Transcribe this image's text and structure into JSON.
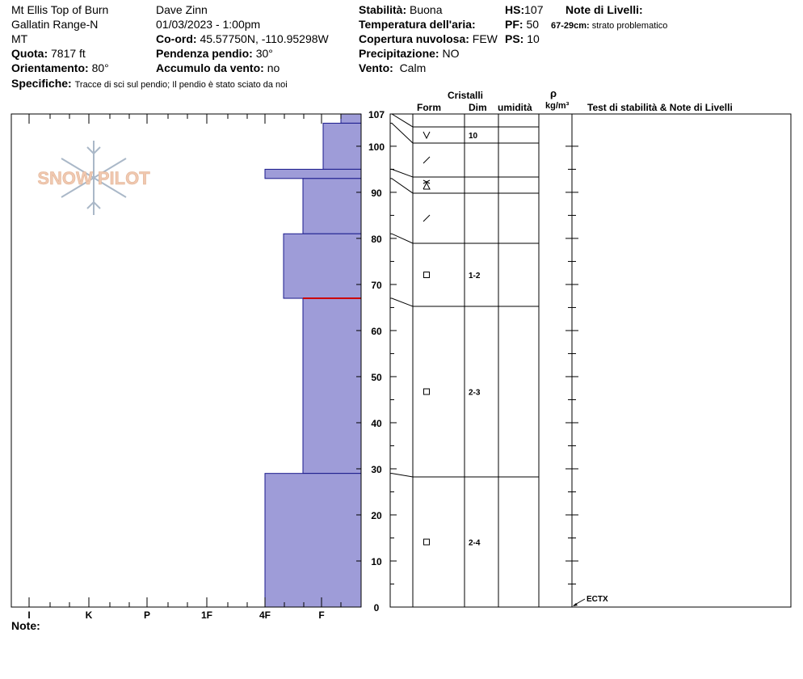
{
  "header": {
    "location": "Mt Ellis Top of Burn",
    "range": "Gallatin Range-N",
    "state": "MT",
    "observer": "Dave Zinn",
    "datetime": "01/03/2023 - 1:00pm",
    "elevation": {
      "label": "Quota:",
      "value": "7817 ft"
    },
    "aspect": {
      "label": "Orientamento:",
      "value": "80°"
    },
    "coords": {
      "label": "Co-ord:",
      "value": "45.57750N, -110.95298W"
    },
    "slope": {
      "label": "Pendenza pendio:",
      "value": "30°"
    },
    "wind_loading": {
      "label": "Accumulo da vento:",
      "value": "no"
    },
    "specifics": {
      "label": "Specifiche:",
      "value": "Tracce di sci sul pendio;  Il pendio è stato sciato da noi"
    },
    "stability": {
      "label": "Stabilità:",
      "value": "Buona"
    },
    "air_temp": {
      "label": "Temperatura dell'aria:",
      "value": ""
    },
    "sky": {
      "label": "Copertura nuvolosa:",
      "value": "FEW"
    },
    "precip": {
      "label": "Precipitazione:",
      "value": "NO"
    },
    "wind": {
      "label": "Vento:",
      "value": "Calm"
    },
    "hs": {
      "label": "HS:",
      "value": "107"
    },
    "pf": {
      "label": "PF:",
      "value": "50"
    },
    "ps": {
      "label": "PS:",
      "value": "10"
    },
    "layer_notes_title": "Note di Livelli:",
    "layer_note": {
      "range": "67-29cm:",
      "text": "strato problematico"
    }
  },
  "logo": {
    "text": "SNOW PILOT",
    "color": "#f0c8b0"
  },
  "columns": {
    "crystals": "Cristalli",
    "form": "Form",
    "dim": "Dim",
    "moisture": "umidità",
    "rho": "ρ",
    "density_unit": "kg/m³",
    "tests": "Test di stabilità & Note di Livelli"
  },
  "footer": {
    "note_label": "Note:"
  },
  "chart_data": {
    "type": "snow-profile",
    "y_axis": {
      "ylim": [
        0,
        107
      ],
      "ticks": [
        0,
        10,
        20,
        30,
        40,
        50,
        60,
        70,
        80,
        90,
        100,
        107
      ],
      "unit": "cm"
    },
    "hardness_scale": [
      "I",
      "K",
      "P",
      "1F",
      "4F",
      "F"
    ],
    "hardness_profile": [
      {
        "top": 107,
        "bottom": 105,
        "hardness": "F-"
      },
      {
        "top": 105,
        "bottom": 95,
        "hardness": "F+"
      },
      {
        "top": 95,
        "bottom": 93,
        "hardness": "4F-"
      },
      {
        "top": 93,
        "bottom": 81,
        "hardness": "4F"
      },
      {
        "top": 81,
        "bottom": 67,
        "hardness": "4F+"
      },
      {
        "top": 67,
        "bottom": 29,
        "hardness": "4F"
      },
      {
        "top": 29,
        "bottom": 0,
        "hardness": "4F-"
      }
    ],
    "problem_layer_depth": 67,
    "layer_boundaries": [
      107,
      105,
      95,
      93,
      81,
      67,
      29,
      0
    ],
    "crystal_layers": [
      {
        "top": 107,
        "bottom": 105,
        "form": "surface hoar",
        "size": "10"
      },
      {
        "top": 105,
        "bottom": 95,
        "form": "decomposing",
        "size": ""
      },
      {
        "top": 95,
        "bottom": 93,
        "form": "surface hoar / depth hoar",
        "size": ""
      },
      {
        "top": 93,
        "bottom": 81,
        "form": "decomposing",
        "size": ""
      },
      {
        "top": 81,
        "bottom": 67,
        "form": "faceted",
        "size": "1-2"
      },
      {
        "top": 67,
        "bottom": 29,
        "form": "faceted",
        "size": "2-3"
      },
      {
        "top": 29,
        "bottom": 0,
        "form": "faceted",
        "size": "2-4"
      }
    ],
    "stability_tests": [
      {
        "name": "ECTX",
        "depth": 0
      }
    ],
    "colors": {
      "fill": "#9e9cd8",
      "outline": "#1a1a8c",
      "problem": "#cc0000"
    }
  }
}
